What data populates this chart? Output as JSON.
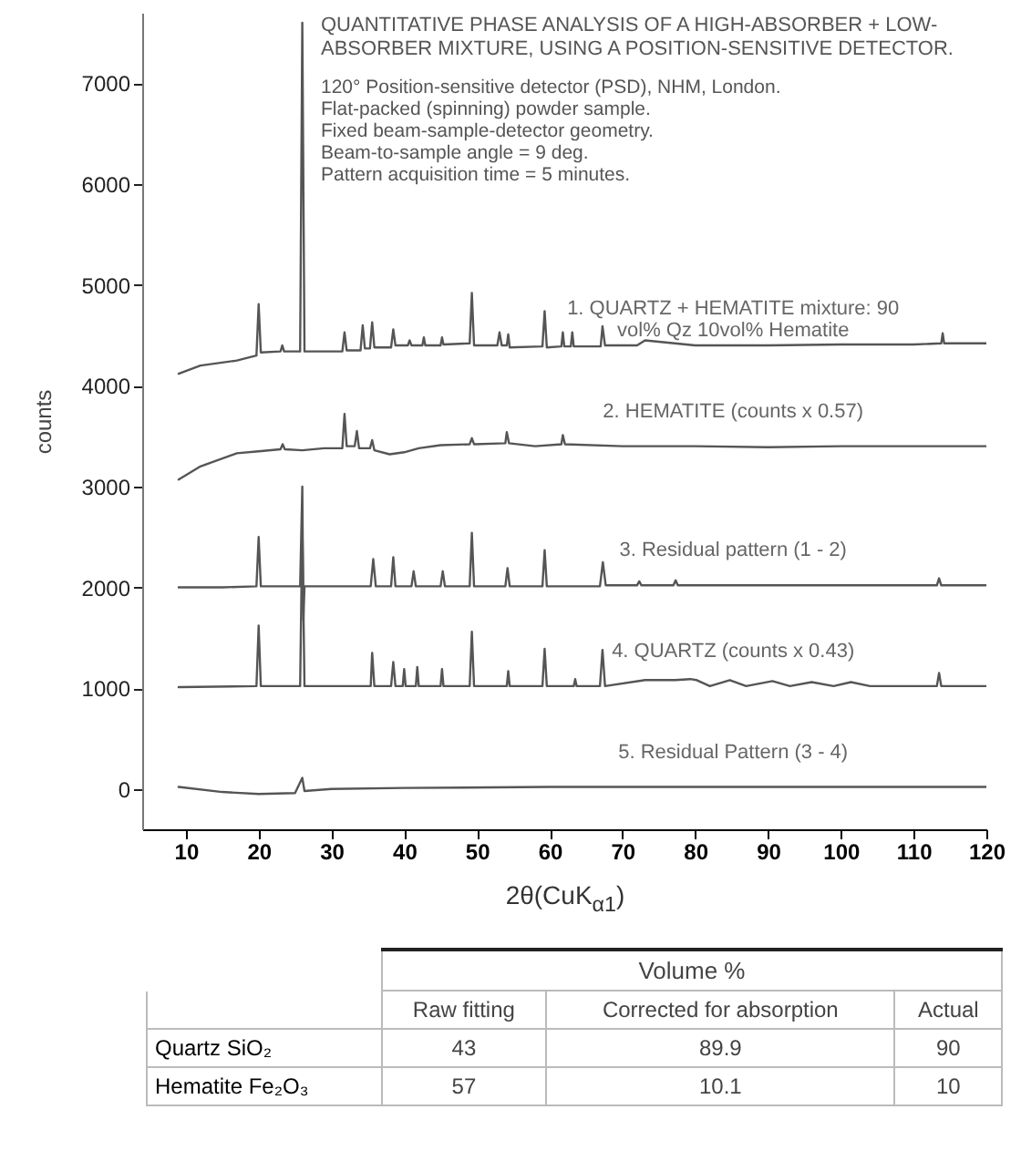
{
  "chart_data": [
    {
      "type": "line",
      "title": "QUANTITATIVE PHASE ANALYSIS OF A HIGH-ABSORBER + LOW-ABSORBER MIXTURE, USING A POSITION-SENSITIVE DETECTOR.",
      "annotations": [
        "120° Position-sensitive detector (PSD), NHM, London.",
        "Flat-packed (spinning) powder sample.",
        "Fixed beam-sample-detector geometry.",
        "Beam-to-sample angle  = 9 deg.",
        "Pattern acquisition time = 5 minutes."
      ],
      "xlabel": "2θ(CuK$_{α1}$)",
      "ylabel": "counts",
      "xlim": [
        4,
        120
      ],
      "xticks": [
        10,
        20,
        30,
        40,
        50,
        60,
        70,
        80,
        90,
        100,
        110,
        120
      ],
      "ylim": [
        -400,
        7700
      ],
      "yticks": [
        0,
        1000,
        2000,
        3000,
        4000,
        5000,
        6000,
        7000
      ],
      "line_style": "solid",
      "series": [
        {
          "name": "1. QUARTZ + HEMATITE mixture: 90 vol% Qz 10vol% Hematite",
          "color": "#555555",
          "x": [
            9,
            12,
            17,
            19.7,
            20,
            20.3,
            23,
            23.25,
            23.5,
            25.7,
            26,
            26.3,
            29,
            31.5,
            31.8,
            32.1,
            34,
            34.3,
            34.6,
            35.3,
            35.6,
            35.9,
            38.2,
            38.5,
            38.8,
            40.5,
            40.75,
            41,
            42.5,
            42.7,
            42.9,
            45,
            45.2,
            45.4,
            49,
            49.3,
            49.6,
            52.8,
            53.1,
            53.4,
            54.1,
            54.3,
            54.5,
            59,
            59.3,
            59.6,
            61.6,
            61.8,
            62,
            62.9,
            63.1,
            63.3,
            67,
            67.25,
            67.6,
            72,
            73.1,
            80,
            90,
            100,
            110,
            113.8,
            114,
            114.2,
            120
          ],
          "values": [
            4120,
            4200,
            4250,
            4300,
            4810,
            4330,
            4340,
            4400,
            4340,
            4340,
            7600,
            4340,
            4340,
            4340,
            4530,
            4350,
            4350,
            4600,
            4370,
            4370,
            4630,
            4380,
            4380,
            4560,
            4400,
            4400,
            4450,
            4400,
            4400,
            4480,
            4400,
            4400,
            4480,
            4410,
            4420,
            4920,
            4400,
            4400,
            4530,
            4400,
            4400,
            4510,
            4380,
            4390,
            4740,
            4380,
            4390,
            4530,
            4390,
            4390,
            4530,
            4390,
            4390,
            4590,
            4400,
            4400,
            4450,
            4400,
            4400,
            4410,
            4410,
            4420,
            4520,
            4420,
            4420
          ]
        },
        {
          "name": "2. HEMATITE (counts x 0.57)",
          "color": "#555555",
          "x": [
            9,
            12,
            17,
            20,
            23,
            23.3,
            23.6,
            26,
            29,
            31.5,
            31.8,
            32.1,
            33.2,
            33.5,
            33.8,
            35.3,
            35.6,
            35.9,
            38,
            40,
            42,
            45,
            49,
            49.3,
            49.6,
            53.9,
            54.1,
            54.4,
            58,
            61.6,
            61.8,
            62.1,
            70,
            80,
            90,
            100,
            110,
            120
          ],
          "values": [
            3070,
            3200,
            3330,
            3350,
            3370,
            3420,
            3370,
            3360,
            3380,
            3380,
            3720,
            3400,
            3400,
            3550,
            3380,
            3380,
            3460,
            3360,
            3320,
            3340,
            3380,
            3410,
            3420,
            3480,
            3420,
            3430,
            3540,
            3430,
            3400,
            3420,
            3510,
            3420,
            3400,
            3400,
            3390,
            3400,
            3400,
            3400
          ]
        },
        {
          "name": "3. Residual pattern  (1 - 2)",
          "color": "#555555",
          "x": [
            9,
            15,
            19.7,
            20,
            20.3,
            25.7,
            26,
            26.15,
            26.3,
            35.4,
            35.75,
            36.1,
            38.2,
            38.5,
            38.8,
            41,
            41.3,
            41.6,
            45,
            45.3,
            45.6,
            49,
            49.3,
            49.6,
            53.9,
            54.2,
            54.5,
            59,
            59.3,
            59.6,
            66.9,
            67.3,
            67.7,
            72,
            72.3,
            72.6,
            77,
            77.3,
            77.6,
            80,
            90,
            100,
            110,
            113.2,
            113.5,
            113.8,
            120
          ],
          "values": [
            2000,
            2000,
            2010,
            2500,
            2010,
            2010,
            3000,
            1680,
            2010,
            2010,
            2280,
            2010,
            2010,
            2300,
            2010,
            2010,
            2160,
            2010,
            2010,
            2160,
            2010,
            2010,
            2540,
            2010,
            2010,
            2190,
            2010,
            2010,
            2370,
            2010,
            2010,
            2250,
            2020,
            2020,
            2060,
            2020,
            2020,
            2070,
            2020,
            2020,
            2020,
            2020,
            2020,
            2020,
            2090,
            2020,
            2020
          ]
        },
        {
          "name": "4. QUARTZ  (counts x 0.43)",
          "color": "#555555",
          "x": [
            9,
            19.7,
            20,
            20.3,
            25.7,
            26,
            26.3,
            35.4,
            35.6,
            35.9,
            38.2,
            38.5,
            38.8,
            39.8,
            40,
            40.2,
            41.6,
            41.8,
            42,
            45,
            45.2,
            45.4,
            49,
            49.3,
            49.6,
            54.1,
            54.3,
            54.5,
            59,
            59.3,
            59.6,
            63.3,
            63.5,
            63.7,
            66.9,
            67.25,
            67.6,
            73.1,
            75.2,
            77.25,
            79.3,
            80.2,
            82,
            84.75,
            87,
            90.6,
            93,
            96,
            99,
            101.4,
            104,
            113.2,
            113.5,
            113.8,
            120
          ],
          "values": [
            1010,
            1020,
            1620,
            1020,
            1020,
            2600,
            1020,
            1020,
            1350,
            1020,
            1020,
            1260,
            1020,
            1020,
            1190,
            1020,
            1020,
            1210,
            1020,
            1020,
            1190,
            1020,
            1020,
            1560,
            1020,
            1020,
            1170,
            1020,
            1020,
            1390,
            1020,
            1020,
            1090,
            1020,
            1020,
            1380,
            1020,
            1080,
            1080,
            1080,
            1090,
            1080,
            1020,
            1080,
            1020,
            1070,
            1020,
            1060,
            1020,
            1060,
            1020,
            1020,
            1150,
            1020,
            1020
          ]
        },
        {
          "name": "5. Residual Pattern  (3 - 4)",
          "color": "#555555",
          "x": [
            9,
            15,
            20,
            25,
            26,
            26.3,
            30,
            40,
            60,
            80,
            100,
            120
          ],
          "values": [
            20,
            -30,
            -50,
            -40,
            110,
            -20,
            0,
            10,
            20,
            20,
            20,
            20
          ]
        }
      ]
    },
    {
      "type": "other",
      "title": "Volume %",
      "categories": [
        "Raw fitting",
        "Corrected for absorption",
        "Actual"
      ],
      "y_categories": [
        "Quartz SiO₂",
        "Hematite Fe₂O₃"
      ],
      "annotations": [
        "43",
        "89.9",
        "90",
        "57",
        "10.1",
        "10"
      ]
    }
  ]
}
